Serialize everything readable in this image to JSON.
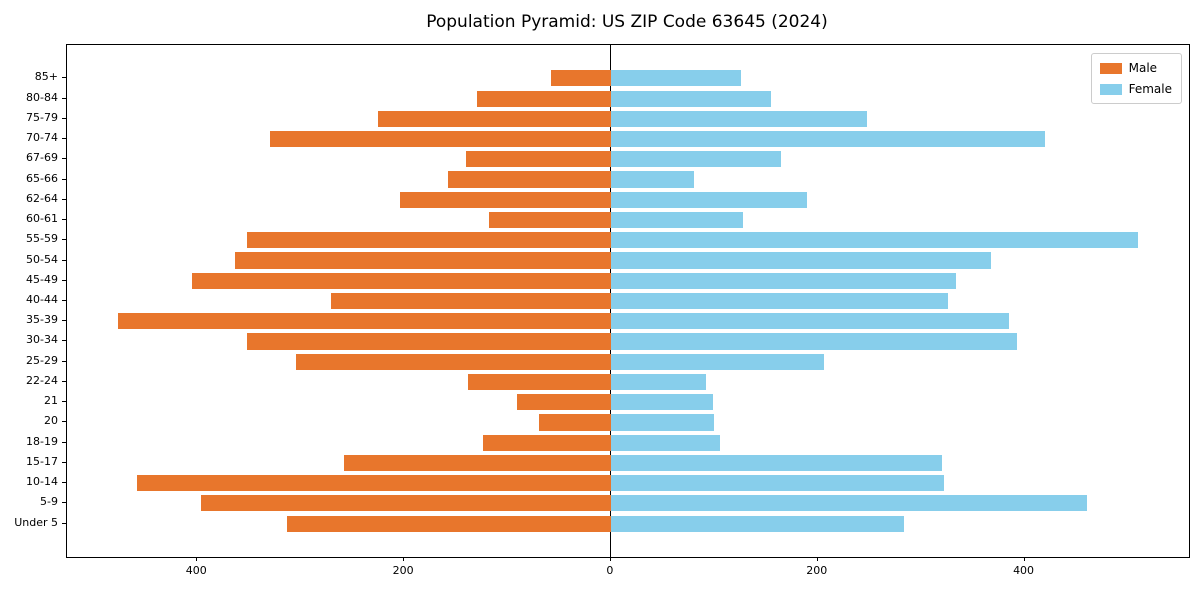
{
  "page": {
    "title": "Population Pyramid: US ZIP Code 63645 (2024)"
  },
  "chart_data": {
    "type": "bar",
    "orientation": "horizontal-pyramid",
    "title": "Population Pyramid: US ZIP Code 63645 (2024)",
    "categories_top_to_bottom": [
      "85+",
      "80-84",
      "75-79",
      "70-74",
      "67-69",
      "65-66",
      "62-64",
      "60-61",
      "55-59",
      "50-54",
      "45-49",
      "40-44",
      "35-39",
      "30-34",
      "25-29",
      "22-24",
      "21",
      "20",
      "18-19",
      "15-17",
      "10-14",
      "5-9",
      "Under 5"
    ],
    "series": [
      {
        "name": "Male",
        "side": "left",
        "color": "#e8762c",
        "values": [
          58,
          130,
          225,
          330,
          140,
          158,
          204,
          118,
          352,
          364,
          405,
          271,
          477,
          352,
          305,
          138,
          91,
          70,
          124,
          258,
          458,
          396,
          313
        ]
      },
      {
        "name": "Female",
        "side": "right",
        "color": "#87ceeb",
        "values": [
          126,
          155,
          248,
          420,
          164,
          80,
          190,
          128,
          510,
          368,
          334,
          326,
          385,
          393,
          206,
          92,
          99,
          100,
          105,
          320,
          322,
          460,
          283
        ]
      }
    ],
    "x_axis": {
      "tick_values": [
        -400,
        -200,
        0,
        200,
        400
      ],
      "tick_labels": [
        "400",
        "200",
        "0",
        "200",
        "400"
      ],
      "xlim": [
        -526,
        559
      ]
    },
    "y_axis": {
      "label": "",
      "categories_are_age_groups": true
    },
    "legend": {
      "position": "upper-right",
      "entries": [
        "Male",
        "Female"
      ]
    },
    "grid": false,
    "zero_line": true,
    "background": "#ffffff"
  }
}
